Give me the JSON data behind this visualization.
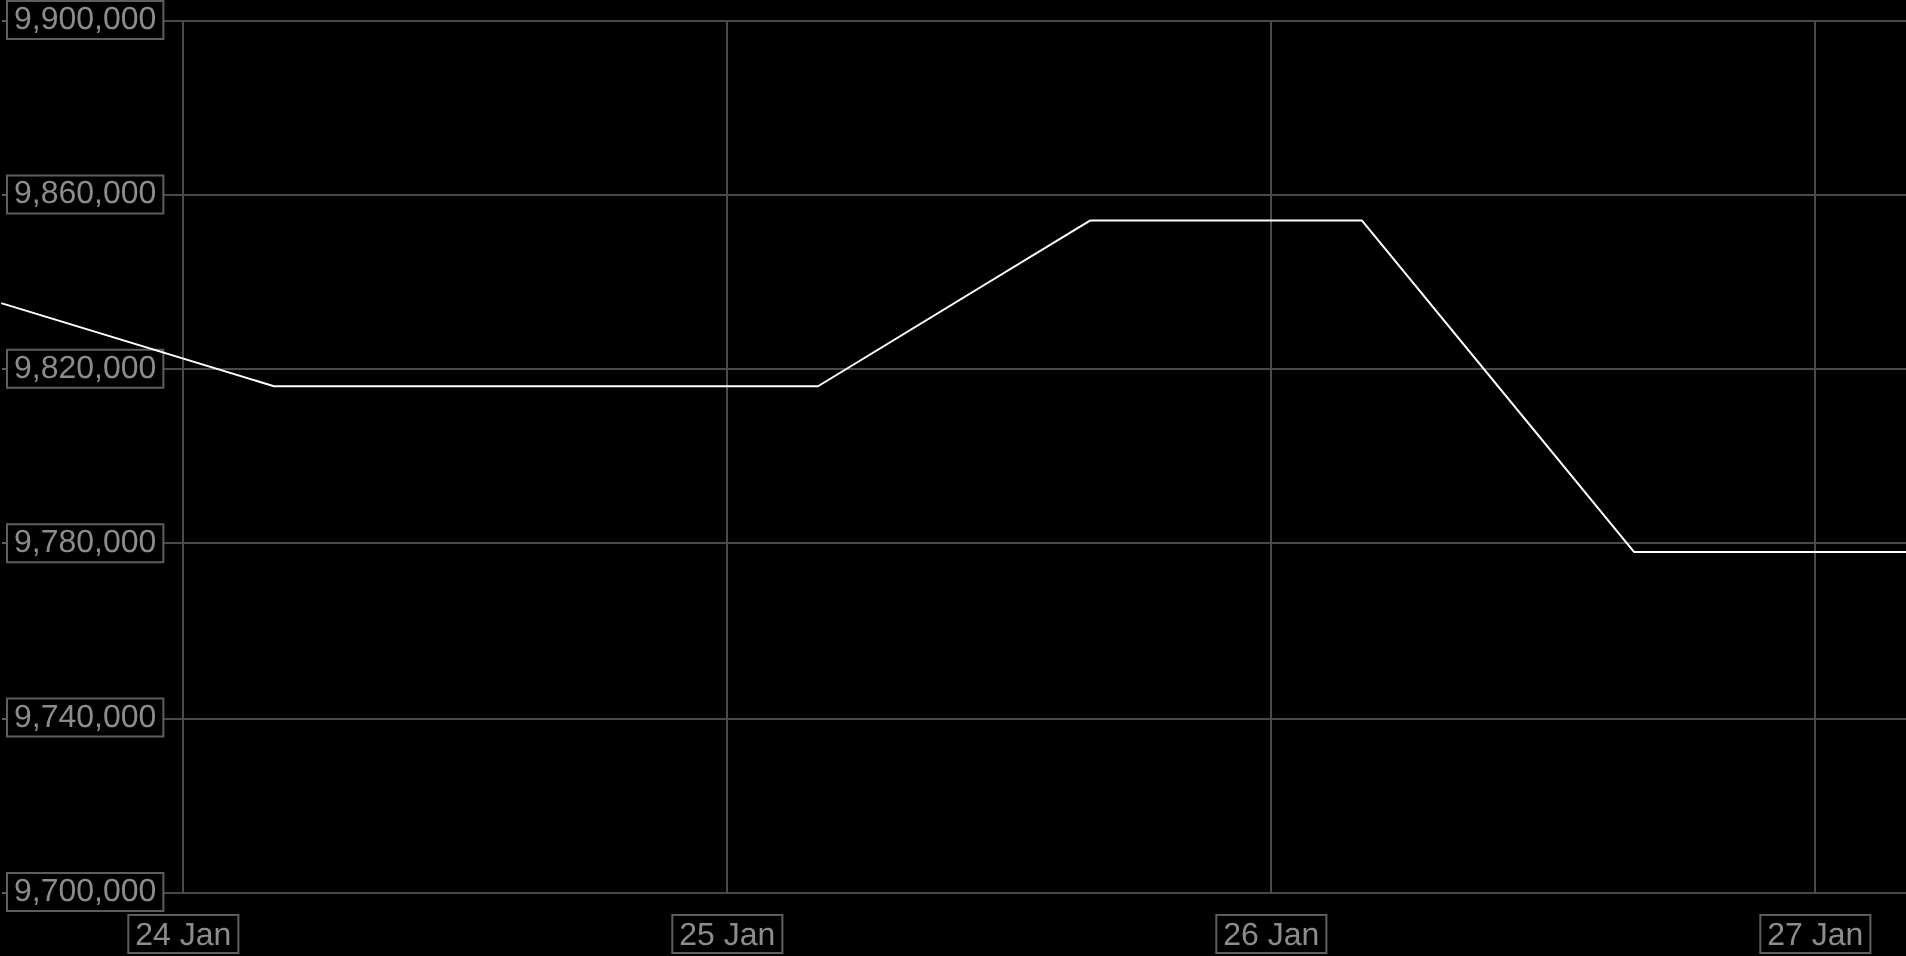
{
  "chart_data": {
    "type": "line",
    "x": [
      "--01-23T16:00",
      "--01-24T04:00",
      "--01-24T16:00",
      "--01-25T04:00",
      "--01-25T16:00",
      "--01-26T04:00",
      "--01-26T16:00",
      "--01-27T04:00"
    ],
    "series": [
      {
        "color": "#ffffff",
        "values": [
          9835000,
          9816000,
          9816000,
          9816000,
          9854000,
          9854000,
          9778000,
          9778000
        ]
      }
    ],
    "xlim": [
      "--01-23T16:00",
      "--01-27T04:00"
    ],
    "xticks": [
      {
        "value": "--01-24",
        "label": "24 Jan"
      },
      {
        "value": "--01-25",
        "label": "25 Jan"
      },
      {
        "value": "--01-26",
        "label": "26 Jan"
      },
      {
        "value": "--01-27",
        "label": "27 Jan"
      }
    ],
    "ylim": [
      9700000,
      9900000
    ],
    "yticks": [
      {
        "value": 9700000,
        "label": "9,700,000"
      },
      {
        "value": 9740000,
        "label": "9,740,000"
      },
      {
        "value": 9780000,
        "label": "9,780,000"
      },
      {
        "value": 9820000,
        "label": "9,820,000"
      },
      {
        "value": 9860000,
        "label": "9,860,000"
      },
      {
        "value": 9900000,
        "label": "9,900,000"
      }
    ],
    "grid": true,
    "marker": "none"
  }
}
